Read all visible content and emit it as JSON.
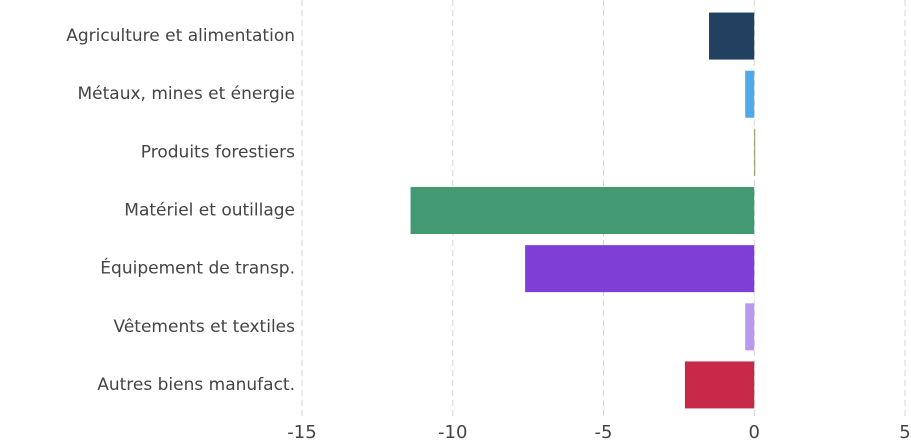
{
  "chart_data": {
    "type": "bar",
    "orientation": "horizontal",
    "categories": [
      "Agriculture et alimentation",
      "Métaux, mines et énergie",
      "Produits forestiers",
      "Matériel et outillage",
      "Équipement de transp.",
      "Vêtements et textiles",
      "Autres biens manufact."
    ],
    "values": [
      -1.5,
      -0.3,
      0,
      -11.4,
      -7.6,
      -0.3,
      -2.3
    ],
    "colors": [
      "#22405f",
      "#4fa9e6",
      "#8a9a5b",
      "#439a72",
      "#7f3fd6",
      "#b999ee",
      "#c72a48"
    ],
    "xlim": [
      -15,
      5
    ],
    "xticks": [
      -15,
      -10,
      -5,
      0,
      5
    ],
    "grid": true
  }
}
